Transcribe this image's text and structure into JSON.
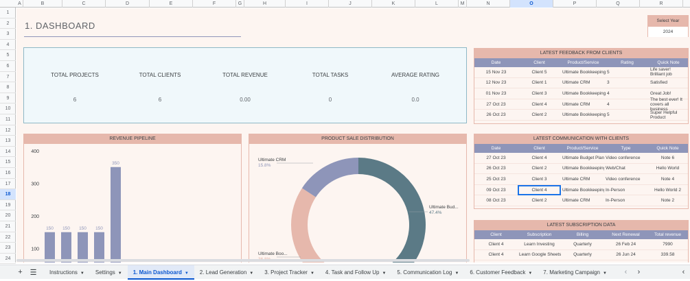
{
  "columns": [
    "A",
    "B",
    "C",
    "D",
    "E",
    "F",
    "G",
    "H",
    "I",
    "J",
    "K",
    "L",
    "M",
    "N",
    "O",
    "P",
    "Q",
    "R"
  ],
  "selected_column": "O",
  "rows": [
    "1",
    "2",
    "3",
    "4",
    "5",
    "6",
    "7",
    "8",
    "9",
    "10",
    "11",
    "12",
    "13",
    "14",
    "15",
    "16",
    "17",
    "18",
    "19",
    "20",
    "21",
    "22",
    "23",
    "24"
  ],
  "selected_row": "18",
  "dashboard_title": "1. DASHBOARD",
  "year_selector": {
    "label": "Select Year",
    "value": "2024"
  },
  "kpis": [
    {
      "label": "TOTAL PROJECTS",
      "value": "6"
    },
    {
      "label": "TOTAL CLIENTS",
      "value": "6"
    },
    {
      "label": "TOTAL REVENUE",
      "value": "0.00"
    },
    {
      "label": "TOTAL TASKS",
      "value": "0"
    },
    {
      "label": "AVERAGE RATING",
      "value": "0.0"
    }
  ],
  "feedback": {
    "title": "LATEST FEEDBACK FROM CLIENTS",
    "headers": [
      "Date",
      "Client",
      "Product/Service",
      "Rating",
      "Quick Note"
    ],
    "rows": [
      [
        "15 Nov 23",
        "Client 5",
        "Ultimate Bookkeeping",
        "5",
        "Life saver! Brilliant job"
      ],
      [
        "12 Nov 23",
        "Client 1",
        "Ultimate CRM",
        "3",
        "Satisfied"
      ],
      [
        "01 Nov 23",
        "Client 3",
        "Ultimate Bookkeeping",
        "4",
        "Great Job!"
      ],
      [
        "27 Oct 23",
        "Client 4",
        "Ultimate CRM",
        "4",
        "The best ever! It covers all business"
      ],
      [
        "26 Oct 23",
        "Client 2",
        "Ultimate Bookkeeping",
        "5",
        "Super Helpful Product"
      ]
    ]
  },
  "communication": {
    "title": "LATEST COMMUNICATION WITH CLIENTS",
    "headers": [
      "Date",
      "Client",
      "Product/Service",
      "Type",
      "Quick Note"
    ],
    "rows": [
      [
        "27 Oct 23",
        "Client 4",
        "Ultimate Budget Planner",
        "Video conference",
        "Note 6"
      ],
      [
        "26 Oct 23",
        "Client 2",
        "Ultimate Bookkeeping",
        "Web/Chat",
        "Hello World"
      ],
      [
        "25 Oct 23",
        "Client 3",
        "Ultimate CRM",
        "Video conference",
        "Note 4"
      ],
      [
        "09 Oct 23",
        "Client 4",
        "Ultimate Bookkeeping",
        "In-Person",
        "Hello World 2"
      ],
      [
        "08 Oct 23",
        "Client 2",
        "Ultimate CRM",
        "In-Person",
        "Note 2"
      ]
    ]
  },
  "subscription": {
    "title": "LATEST SUBSCRIPTION DATA",
    "headers": [
      "Client",
      "Subscription",
      "Billing",
      "Next Renewal",
      "Total revenue"
    ],
    "rows": [
      [
        "Client 4",
        "Learn Investing",
        "Quarterly",
        "26 Feb 24",
        "7990"
      ],
      [
        "Client 4",
        "Learn Google Sheets",
        "Quarterly",
        "26 Jun 24",
        "339.58"
      ]
    ]
  },
  "tabs": [
    {
      "label": "Instructions",
      "active": false
    },
    {
      "label": "Settings",
      "active": false
    },
    {
      "label": "1. Main Dashboard",
      "active": true
    },
    {
      "label": "2. Lead Generation",
      "active": false
    },
    {
      "label": "3. Project Tracker",
      "active": false
    },
    {
      "label": "4. Task and Follow Up",
      "active": false
    },
    {
      "label": "5. Communication Log",
      "active": false
    },
    {
      "label": "6. Customer Feedback",
      "active": false
    },
    {
      "label": "7. Marketing Campaign",
      "active": false
    }
  ],
  "colors": {
    "header_pink": "#e6b8ac",
    "table_header": "#8e95b9",
    "bar": "#8e95b9",
    "donut_teal": "#5b7a86",
    "donut_pink": "#e6b8ac",
    "donut_lav": "#8e95b9"
  },
  "chart_data": [
    {
      "type": "bar",
      "title": "REVENUE PIPELINE",
      "categories": [
        "",
        "",
        "",
        "",
        ""
      ],
      "values": [
        150,
        150,
        150,
        150,
        350
      ],
      "data_labels": [
        "150",
        "150",
        "150",
        "150",
        "350"
      ],
      "y_ticks": [
        "100",
        "200",
        "300",
        "400"
      ],
      "ylim": [
        0,
        400
      ],
      "grid": false
    },
    {
      "type": "pie",
      "title": "PRODUCT SALE DISTRIBUTION",
      "slices": [
        {
          "name": "Ultimate Bud...",
          "value": 47.4,
          "label": "47.4%",
          "color": "#5b7a86"
        },
        {
          "name": "Ultimate Boo...",
          "value": 36.8,
          "label": "36.8%",
          "color": "#e6b8ac"
        },
        {
          "name": "Ultimate CRM",
          "value": 15.8,
          "label": "15.8%",
          "color": "#8e95b9"
        }
      ]
    }
  ]
}
